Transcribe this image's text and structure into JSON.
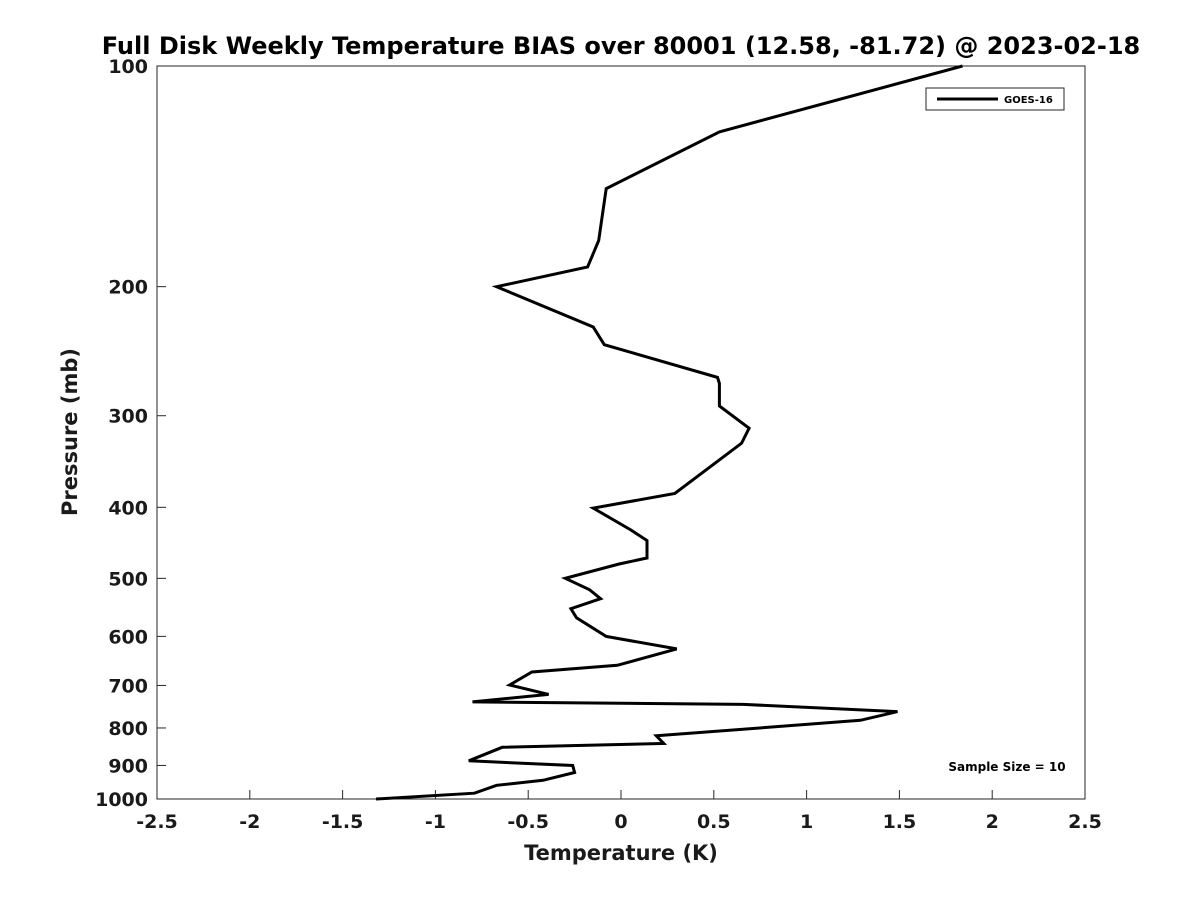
{
  "chart_data": {
    "type": "line",
    "title": "Full Disk Weekly Temperature BIAS over 80001 (12.58, -81.72) @ 2023-02-18",
    "xlabel": "Temperature (K)",
    "ylabel": "Pressure (mb)",
    "xlim": [
      -2.5,
      2.5
    ],
    "ylim": [
      1000,
      100
    ],
    "yscale": "log",
    "xticks": [
      -2.5,
      -2,
      -1.5,
      -1,
      -0.5,
      0,
      0.5,
      1,
      1.5,
      2,
      2.5
    ],
    "xtick_labels": [
      "-2.5",
      "-2",
      "-1.5",
      "-1",
      "-0.5",
      "0",
      "0.5",
      "1",
      "1.5",
      "2",
      "2.5"
    ],
    "yticks": [
      100,
      200,
      300,
      400,
      500,
      600,
      700,
      800,
      900,
      1000
    ],
    "ytick_labels": [
      "100",
      "200",
      "300",
      "400",
      "500",
      "600",
      "700",
      "800",
      "900",
      "1000"
    ],
    "legend": {
      "position": "top-right",
      "entries": [
        "GOES-16"
      ]
    },
    "annotation": "Sample Size = 10",
    "series": [
      {
        "name": "GOES-16",
        "color": "#000000",
        "x": [
          1.84,
          0.53,
          -0.08,
          -0.12,
          -0.18,
          -0.67,
          -0.15,
          -0.09,
          0.52,
          0.53,
          0.53,
          0.69,
          0.65,
          0.29,
          -0.15,
          0.05,
          0.14,
          0.14,
          -0.01,
          -0.3,
          -0.17,
          -0.11,
          -0.27,
          -0.24,
          -0.08,
          0.3,
          -0.02,
          -0.48,
          -0.6,
          -0.39,
          -0.8,
          0.66,
          1.49,
          1.29,
          0.19,
          0.23,
          -0.64,
          -0.82,
          -0.26,
          -0.25,
          -0.42,
          -0.67,
          -0.79,
          -1.32
        ],
        "y": [
          100,
          123,
          147,
          173,
          188,
          200,
          227,
          240,
          266,
          271,
          291,
          312,
          327,
          383,
          401,
          429,
          444,
          469,
          478,
          500,
          518,
          533,
          550,
          566,
          600,
          624,
          657,
          671,
          699,
          720,
          737,
          743,
          760,
          781,
          820,
          840,
          850,
          887,
          900,
          920,
          943,
          958,
          982,
          1000
        ]
      }
    ]
  }
}
